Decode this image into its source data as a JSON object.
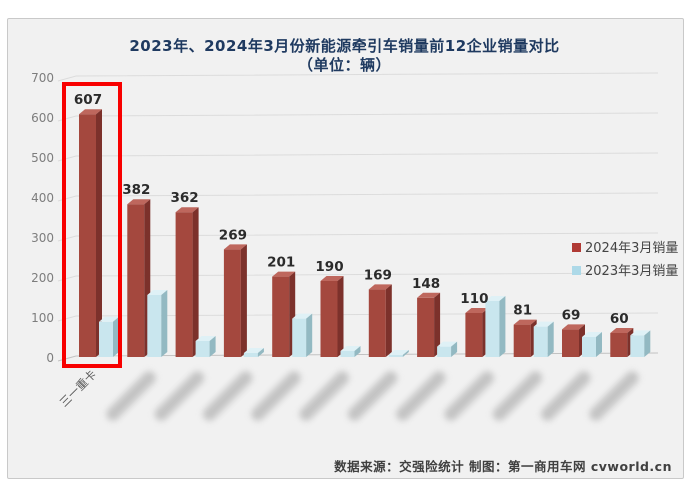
{
  "title": {
    "line1": "2023年、2024年3月份新能源牵引车销量前12企业销量对比",
    "line2": "（单位：辆）"
  },
  "source_note": "数据来源：交强险统计 制图：第一商用车网 cvworld.cn",
  "colors": {
    "series_2024": "#A4483E",
    "series_2024_top": "#BE675D",
    "series_2024_side": "#7C312B",
    "series_2023": "#C9E6EE",
    "series_2023_top": "#DFF1F6",
    "series_2023_side": "#93B9C2",
    "highlight_box": "#F80000",
    "title_text": "#1F3A60",
    "panel_background": "#F1F1F1"
  },
  "legend": {
    "position": "right-center",
    "items": [
      {
        "label": "2024年3月销量",
        "color": "#B03A35"
      },
      {
        "label": "2023年3月销量",
        "color": "#ADD9E8"
      }
    ]
  },
  "highlight": {
    "target_group": "三一重卡",
    "group_index": 0
  },
  "chart_data": {
    "type": "bar",
    "title": "2023年、2024年3月份新能源牵引车销量前12企业销量对比（单位：辆）",
    "categories_visible": [
      "三一重卡"
    ],
    "categories_blurred_count": 11,
    "series": [
      {
        "name": "2024年3月销量",
        "color": "#A4483E",
        "labels_shown": true,
        "values": [
          607,
          382,
          362,
          269,
          201,
          190,
          169,
          148,
          110,
          81,
          69,
          60
        ]
      },
      {
        "name": "2023年3月销量",
        "color": "#C9E6EE",
        "labels_shown": false,
        "values_estimated": true,
        "values": [
          88,
          155,
          40,
          10,
          96,
          15,
          5,
          26,
          140,
          76,
          50,
          54
        ]
      }
    ],
    "ylim": [
      0,
      700
    ],
    "ytick_step": 100,
    "grid": true,
    "style": "3d-column",
    "legend_position": "right-center"
  }
}
